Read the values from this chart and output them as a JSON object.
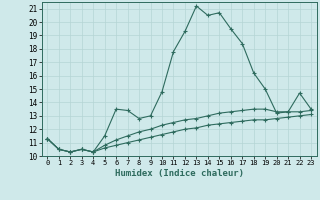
{
  "xlabel": "Humidex (Indice chaleur)",
  "xlim": [
    -0.5,
    23.5
  ],
  "ylim": [
    10,
    21.5
  ],
  "yticks": [
    10,
    11,
    12,
    13,
    14,
    15,
    16,
    17,
    18,
    19,
    20,
    21
  ],
  "xticks": [
    0,
    1,
    2,
    3,
    4,
    5,
    6,
    7,
    8,
    9,
    10,
    11,
    12,
    13,
    14,
    15,
    16,
    17,
    18,
    19,
    20,
    21,
    22,
    23
  ],
  "line_color": "#2e6b5e",
  "bg_color": "#cfe9ea",
  "grid_color": "#b5d5d5",
  "line1_y": [
    11.3,
    10.5,
    10.3,
    10.5,
    10.3,
    11.5,
    13.5,
    13.4,
    12.8,
    13.0,
    14.8,
    17.8,
    19.3,
    21.2,
    20.5,
    20.7,
    19.5,
    18.4,
    16.2,
    15.0,
    13.2,
    13.3,
    14.7,
    13.5
  ],
  "line2_y": [
    11.3,
    10.5,
    10.3,
    10.5,
    10.3,
    10.8,
    11.2,
    11.5,
    11.8,
    12.0,
    12.3,
    12.5,
    12.7,
    12.8,
    13.0,
    13.2,
    13.3,
    13.4,
    13.5,
    13.5,
    13.3,
    13.3,
    13.3,
    13.4
  ],
  "line3_y": [
    11.3,
    10.5,
    10.3,
    10.5,
    10.3,
    10.6,
    10.8,
    11.0,
    11.2,
    11.4,
    11.6,
    11.8,
    12.0,
    12.1,
    12.3,
    12.4,
    12.5,
    12.6,
    12.7,
    12.7,
    12.8,
    12.9,
    13.0,
    13.1
  ]
}
